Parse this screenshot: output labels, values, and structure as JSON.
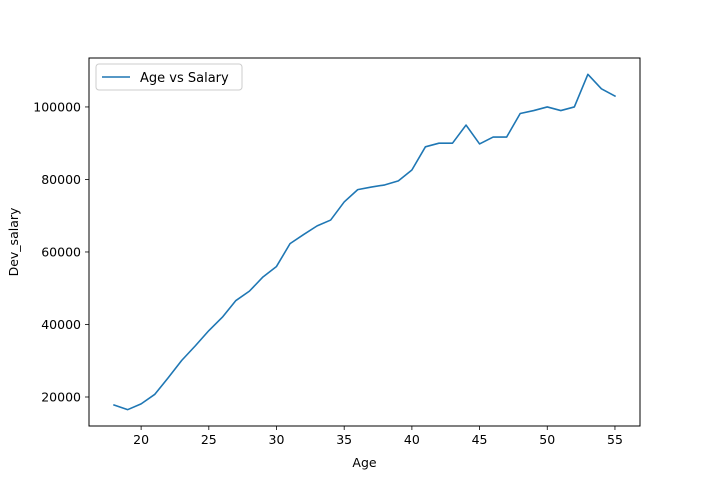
{
  "chart_data": {
    "type": "line",
    "title": "",
    "xlabel": "Age",
    "ylabel": "Dev_salary",
    "xlim": [
      16.15,
      56.85
    ],
    "ylim": [
      12000,
      113500
    ],
    "xticks": [
      20,
      25,
      30,
      35,
      40,
      45,
      50,
      55
    ],
    "yticks": [
      20000,
      40000,
      60000,
      80000,
      100000
    ],
    "grid": false,
    "legend_position": "upper-left",
    "series": [
      {
        "name": "Age vs Salary",
        "color": "#1f77b4",
        "x": [
          18,
          19,
          20,
          21,
          22,
          23,
          24,
          25,
          26,
          27,
          28,
          29,
          30,
          31,
          32,
          33,
          34,
          35,
          36,
          37,
          38,
          39,
          40,
          41,
          42,
          43,
          44,
          45,
          46,
          47,
          48,
          49,
          50,
          51,
          52,
          53,
          54,
          55
        ],
        "y": [
          17800,
          16500,
          18100,
          20700,
          25300,
          30100,
          34100,
          38300,
          42000,
          46600,
          49200,
          53100,
          56000,
          62300,
          64800,
          67200,
          68800,
          73800,
          77200,
          77900,
          78500,
          79600,
          82600,
          89000,
          90000,
          90000,
          95000,
          89800,
          91700,
          91700,
          98200,
          99000,
          100000,
          99000,
          100000,
          109000,
          105000,
          103000
        ]
      }
    ]
  }
}
